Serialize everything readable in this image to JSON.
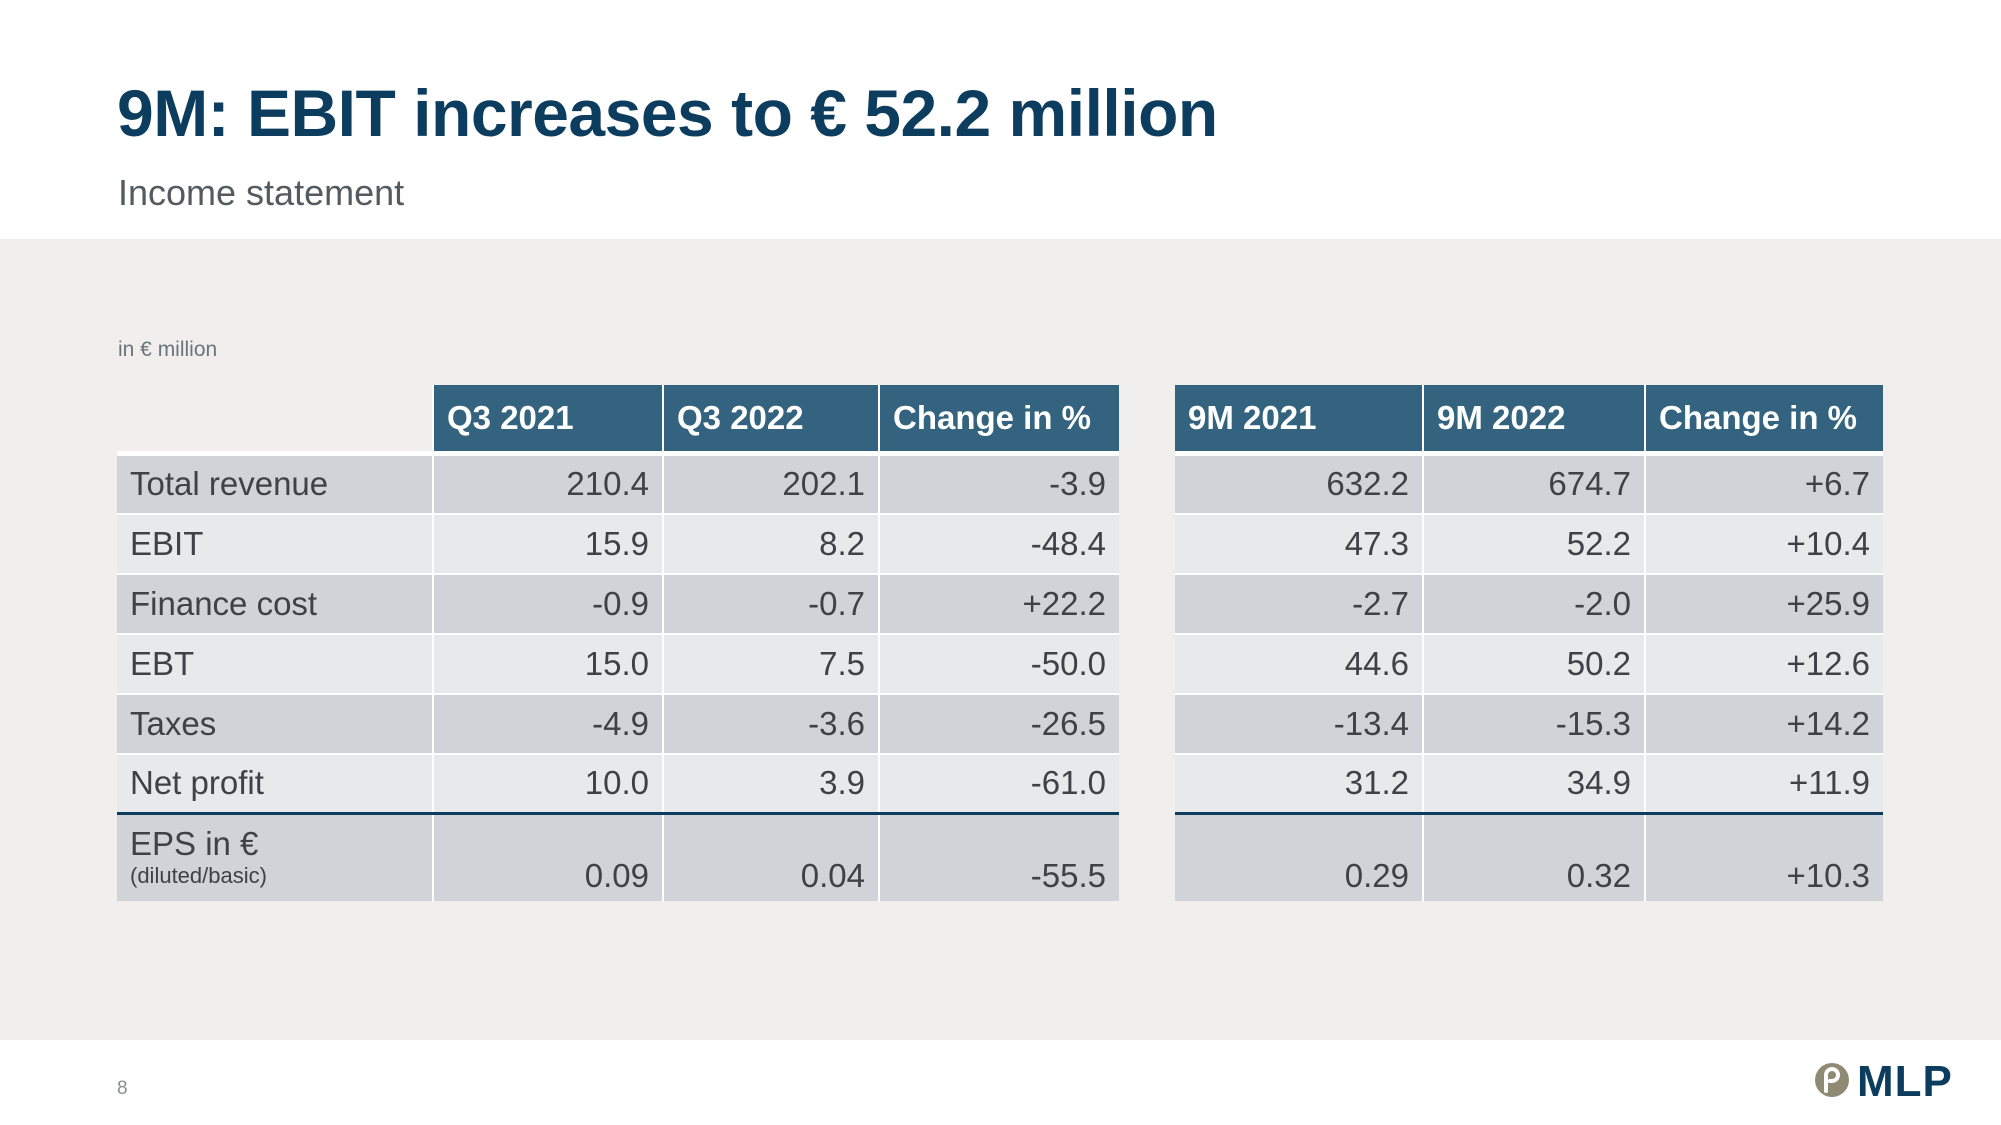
{
  "slide": {
    "title": "9M: EBIT increases to € 52.2 million",
    "subtitle": "Income statement",
    "unit_note": "in € million",
    "page_number": "8",
    "logo_text": "MLP",
    "logo_icon": "mlp-swirl-icon"
  },
  "colors": {
    "title": "#0d3d5e",
    "header_bg": "#33637e",
    "row_dark": "#d0d4d9",
    "row_light": "#e8e9eb",
    "panel_bg": "#f0efee",
    "logo_mark": "#8f8a74"
  },
  "q3_table": {
    "headers": [
      "Q3 2021",
      "Q3 2022",
      "Change in %"
    ],
    "rows": [
      {
        "label": "Total revenue",
        "values": [
          "210.4",
          "202.1",
          "-3.9"
        ]
      },
      {
        "label": "EBIT",
        "values": [
          "15.9",
          "8.2",
          "-48.4"
        ]
      },
      {
        "label": "Finance cost",
        "values": [
          "-0.9",
          "-0.7",
          "+22.2"
        ]
      },
      {
        "label": "EBT",
        "values": [
          "15.0",
          "7.5",
          "-50.0"
        ]
      },
      {
        "label": "Taxes",
        "values": [
          "-4.9",
          "-3.6",
          "-26.5"
        ]
      },
      {
        "label": "Net profit",
        "values": [
          "10.0",
          "3.9",
          "-61.0"
        ]
      }
    ],
    "eps": {
      "label": "EPS in €",
      "sublabel": "(diluted/basic)",
      "values": [
        "0.09",
        "0.04",
        "-55.5"
      ]
    }
  },
  "nine_month_table": {
    "headers": [
      "9M 2021",
      "9M 2022",
      "Change in %"
    ],
    "rows": [
      {
        "values": [
          "632.2",
          "674.7",
          "+6.7"
        ]
      },
      {
        "values": [
          "47.3",
          "52.2",
          "+10.4"
        ]
      },
      {
        "values": [
          "-2.7",
          "-2.0",
          "+25.9"
        ]
      },
      {
        "values": [
          "44.6",
          "50.2",
          "+12.6"
        ]
      },
      {
        "values": [
          "-13.4",
          "-15.3",
          "+14.2"
        ]
      },
      {
        "values": [
          "31.2",
          "34.9",
          "+11.9"
        ]
      }
    ],
    "eps": {
      "values": [
        "0.29",
        "0.32",
        "+10.3"
      ]
    }
  }
}
